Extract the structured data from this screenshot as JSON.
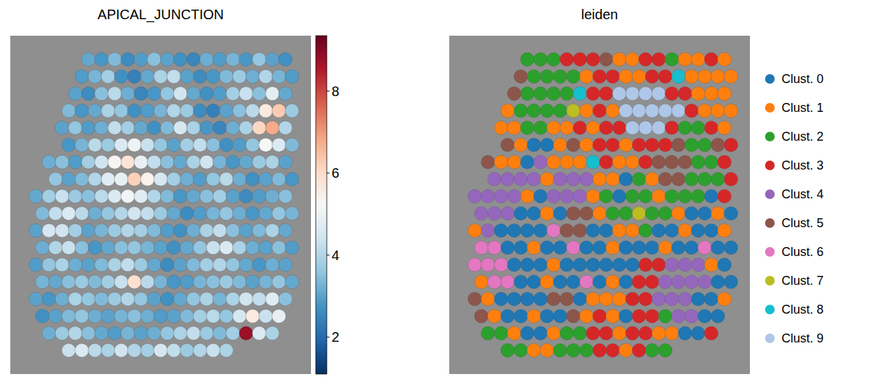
{
  "chart_data": [
    {
      "type": "heatmap",
      "title": "APICAL_JUNCTION",
      "tick_labels": false,
      "colorbar": {
        "range": [
          1.1,
          9.35
        ],
        "ticks": [
          2,
          4,
          6,
          8
        ]
      },
      "cells": [
        [
          null,
          null,
          null,
          null,
          3.1,
          2.8,
          3.4,
          2.6,
          2.9,
          3.5,
          3.0,
          2.7,
          2.5,
          3.2,
          2.9,
          3.3,
          2.8,
          3.6,
          3.0,
          2.7
        ],
        [
          null,
          null,
          null,
          2.9,
          3.3,
          3.8,
          2.7,
          2.4,
          3.1,
          3.9,
          4.2,
          3.0,
          2.6,
          2.8,
          3.4,
          3.7,
          3.2,
          4.0,
          3.3,
          2.9
        ],
        [
          null,
          null,
          null,
          3.0,
          2.6,
          3.5,
          4.1,
          3.2,
          2.5,
          2.8,
          3.6,
          4.4,
          3.1,
          2.7,
          2.9,
          3.8,
          4.3,
          3.5,
          4.8,
          3.1
        ],
        [
          null,
          null,
          3.4,
          2.8,
          3.1,
          3.9,
          3.6,
          2.7,
          2.9,
          3.3,
          4.0,
          3.7,
          2.6,
          2.4,
          3.0,
          3.5,
          4.1,
          5.6,
          6.3,
          3.7
        ],
        [
          null,
          null,
          3.0,
          3.6,
          2.9,
          3.2,
          4.2,
          3.8,
          3.1,
          2.7,
          3.4,
          4.5,
          3.9,
          2.8,
          2.5,
          3.2,
          3.9,
          6.1,
          6.8,
          4.0
        ],
        [
          null,
          null,
          2.8,
          3.3,
          4.1,
          3.7,
          4.6,
          5.0,
          4.3,
          3.6,
          3.0,
          3.8,
          4.2,
          3.5,
          2.7,
          2.9,
          3.6,
          5.2,
          4.6,
          3.4
        ],
        [
          null,
          3.2,
          3.5,
          2.9,
          3.8,
          4.4,
          5.3,
          5.8,
          4.9,
          4.2,
          3.5,
          3.1,
          3.9,
          4.4,
          3.3,
          2.8,
          3.1,
          3.7,
          3.9,
          3.0
        ],
        [
          null,
          3.6,
          3.0,
          3.4,
          4.0,
          4.7,
          4.9,
          6.2,
          5.4,
          4.5,
          3.8,
          3.2,
          2.9,
          3.6,
          4.1,
          3.2,
          2.7,
          3.0,
          3.4,
          2.8
        ],
        [
          3.1,
          3.8,
          4.3,
          3.7,
          3.5,
          4.1,
          4.6,
          5.1,
          4.7,
          4.0,
          3.4,
          2.8,
          3.1,
          3.5,
          3.8,
          3.0,
          2.6,
          2.9,
          3.2,
          3.5
        ],
        [
          3.4,
          4.2,
          4.6,
          4.1,
          3.2,
          3.6,
          4.0,
          4.4,
          4.2,
          3.7,
          3.1,
          2.6,
          2.9,
          3.3,
          3.6,
          3.2,
          2.8,
          3.1,
          3.6,
          3.3
        ],
        [
          3.0,
          4.5,
          4.4,
          3.8,
          3.0,
          3.3,
          3.7,
          4.0,
          3.8,
          3.4,
          2.9,
          2.7,
          3.2,
          3.9,
          4.2,
          3.5,
          3.0,
          3.4,
          3.9,
          3.1
        ],
        [
          3.2,
          4.0,
          4.3,
          3.5,
          2.8,
          3.1,
          3.5,
          3.6,
          3.3,
          3.0,
          2.7,
          3.1,
          3.6,
          4.3,
          4.6,
          3.9,
          3.2,
          3.0,
          3.5,
          2.9
        ],
        [
          2.9,
          3.6,
          3.9,
          3.2,
          3.0,
          3.4,
          3.9,
          4.2,
          3.7,
          3.1,
          2.6,
          3.0,
          3.4,
          3.8,
          4.0,
          3.6,
          3.1,
          2.8,
          3.2,
          3.0
        ],
        [
          3.3,
          3.1,
          3.5,
          3.7,
          3.4,
          3.8,
          4.3,
          5.9,
          4.1,
          3.3,
          2.8,
          2.9,
          3.3,
          3.5,
          3.7,
          3.4,
          3.0,
          3.3,
          3.6,
          3.1
        ],
        [
          3.0,
          2.8,
          3.2,
          3.9,
          3.6,
          3.4,
          3.7,
          4.0,
          3.6,
          3.0,
          2.7,
          3.1,
          3.6,
          3.9,
          3.3,
          3.9,
          4.4,
          4.2,
          4.7,
          3.5
        ],
        [
          2.7,
          3.0,
          3.4,
          3.6,
          3.2,
          3.0,
          3.3,
          3.5,
          3.2,
          2.9,
          3.0,
          3.4,
          3.8,
          4.1,
          3.6,
          4.5,
          5.6,
          4.3,
          4.9,
          null
        ],
        [
          null,
          3.2,
          3.7,
          4.0,
          3.5,
          3.1,
          2.9,
          3.3,
          3.0,
          3.2,
          3.6,
          3.9,
          4.2,
          3.7,
          3.4,
          3.8,
          8.8,
          4.6,
          3.9,
          null
        ],
        [
          null,
          null,
          4.3,
          4.6,
          4.1,
          3.9,
          4.4,
          4.0,
          3.8,
          4.5,
          4.2,
          3.7,
          4.0,
          4.3,
          3.9,
          null,
          null,
          null,
          null,
          null
        ]
      ]
    },
    {
      "type": "categorical_map",
      "title": "leiden",
      "tick_labels": false,
      "legend": "right",
      "categories": [
        "Clust. 0",
        "Clust. 1",
        "Clust. 2",
        "Clust. 3",
        "Clust. 4",
        "Clust. 5",
        "Clust. 6",
        "Clust. 7",
        "Clust. 8",
        "Clust. 9"
      ],
      "colors": [
        "#1f77b4",
        "#ff7f0e",
        "#2ca02c",
        "#d62728",
        "#9467bd",
        "#8c564b",
        "#e377c2",
        "#bcbd22",
        "#17becf",
        "#aec7e8"
      ],
      "cells": [
        [
          null,
          null,
          null,
          null,
          2,
          2,
          2,
          3,
          3,
          3,
          5,
          1,
          1,
          3,
          3,
          2,
          1,
          1,
          3,
          1
        ],
        [
          null,
          null,
          null,
          5,
          2,
          2,
          2,
          2,
          1,
          3,
          3,
          1,
          1,
          3,
          3,
          8,
          1,
          1,
          1,
          1
        ],
        [
          null,
          null,
          null,
          5,
          2,
          2,
          2,
          2,
          8,
          3,
          3,
          9,
          9,
          9,
          9,
          3,
          3,
          1,
          1,
          1
        ],
        [
          null,
          null,
          1,
          2,
          2,
          2,
          2,
          7,
          1,
          3,
          1,
          9,
          9,
          9,
          9,
          9,
          3,
          1,
          1,
          1
        ],
        [
          null,
          null,
          1,
          1,
          2,
          2,
          1,
          1,
          3,
          1,
          3,
          3,
          9,
          9,
          9,
          3,
          2,
          2,
          3,
          1
        ],
        [
          null,
          null,
          5,
          1,
          0,
          0,
          1,
          5,
          1,
          3,
          3,
          1,
          3,
          3,
          3,
          5,
          2,
          2,
          5,
          3
        ],
        [
          null,
          5,
          1,
          1,
          0,
          4,
          1,
          1,
          1,
          8,
          3,
          1,
          1,
          3,
          5,
          5,
          5,
          2,
          2,
          3
        ],
        [
          null,
          4,
          4,
          4,
          4,
          1,
          4,
          4,
          4,
          1,
          1,
          0,
          2,
          1,
          5,
          5,
          2,
          2,
          2,
          3
        ],
        [
          4,
          4,
          4,
          4,
          1,
          0,
          4,
          4,
          4,
          1,
          2,
          0,
          2,
          2,
          1,
          2,
          2,
          2,
          0,
          3
        ],
        [
          4,
          4,
          4,
          0,
          0,
          1,
          0,
          5,
          5,
          1,
          2,
          2,
          7,
          2,
          2,
          1,
          0,
          0,
          1,
          0
        ],
        [
          1,
          4,
          0,
          0,
          0,
          0,
          6,
          5,
          5,
          0,
          0,
          1,
          1,
          2,
          0,
          0,
          1,
          0,
          0,
          1
        ],
        [
          6,
          6,
          0,
          0,
          1,
          0,
          0,
          6,
          0,
          0,
          1,
          0,
          0,
          0,
          1,
          0,
          0,
          6,
          0,
          0
        ],
        [
          6,
          6,
          6,
          0,
          0,
          0,
          1,
          0,
          0,
          0,
          0,
          0,
          0,
          3,
          3,
          4,
          4,
          4,
          1,
          0
        ],
        [
          1,
          6,
          6,
          0,
          0,
          1,
          0,
          0,
          6,
          0,
          1,
          0,
          3,
          3,
          4,
          4,
          4,
          4,
          0,
          0
        ],
        [
          5,
          1,
          0,
          0,
          0,
          0,
          5,
          5,
          0,
          1,
          1,
          1,
          3,
          3,
          4,
          4,
          4,
          0,
          0,
          1
        ],
        [
          5,
          1,
          0,
          0,
          1,
          0,
          0,
          5,
          1,
          3,
          1,
          0,
          3,
          3,
          2,
          4,
          4,
          0,
          0,
          null
        ],
        [
          null,
          2,
          2,
          1,
          0,
          0,
          1,
          2,
          2,
          3,
          3,
          1,
          3,
          3,
          1,
          1,
          0,
          0,
          3,
          null
        ],
        [
          null,
          null,
          2,
          2,
          1,
          1,
          2,
          2,
          2,
          3,
          3,
          1,
          3,
          2,
          2,
          null,
          null,
          null,
          null,
          null
        ]
      ]
    }
  ]
}
